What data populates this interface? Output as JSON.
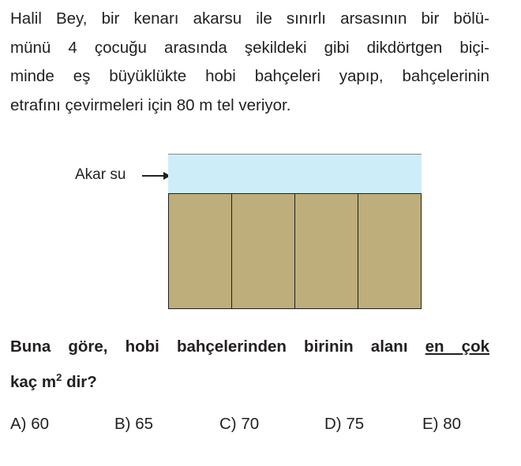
{
  "problem": {
    "lines": [
      "Halil Bey, bir kenarı akarsu ile sınırlı arsasının bir bölü-",
      "münü 4 çocuğu arasında şekildeki gibi dikdörtgen biçi-",
      "minde eş büyüklükte hobi bahçeleri yapıp, bahçelerinin",
      "etrafını çevirmeleri için 80 m tel veriyor."
    ]
  },
  "figure": {
    "river_label": "Akar su",
    "garden_count": 4,
    "colors": {
      "river": "#cdeef9",
      "garden": "#bdae7b"
    }
  },
  "question": {
    "part1": "Buna göre, hobi bahçelerinden birinin alanı ",
    "emphasis": "en çok",
    "part2": "kaç m",
    "sup": "2",
    "part3": " dir?"
  },
  "options": [
    "A) 60",
    "B) 65",
    "C) 70",
    "D) 75",
    "E) 80"
  ]
}
